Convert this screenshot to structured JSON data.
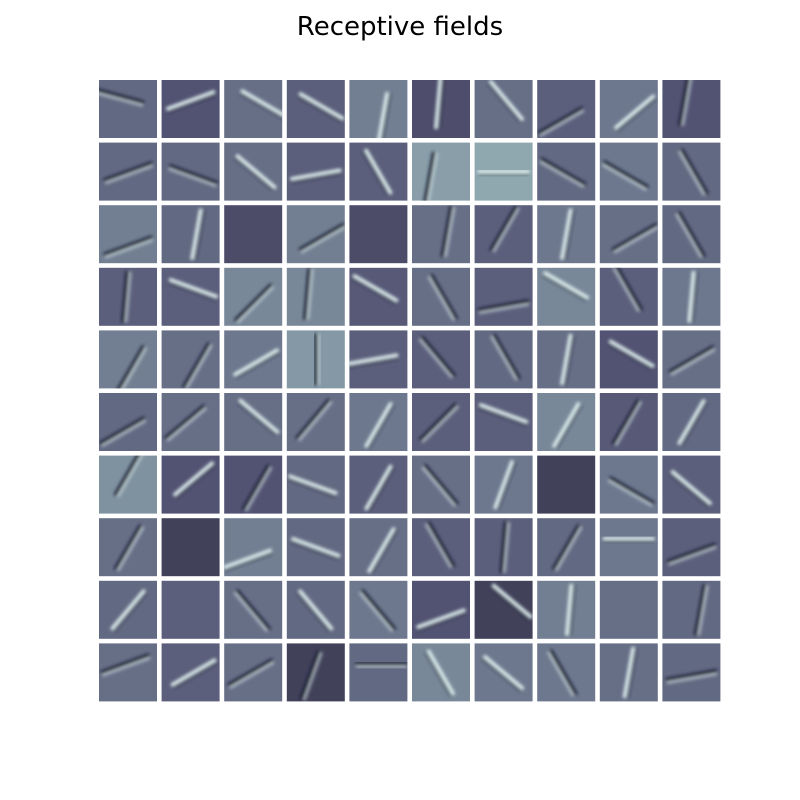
{
  "chart_data": {
    "type": "heatmap",
    "title": "Receptive fields",
    "layout": {
      "rows": 10,
      "cols": 10
    },
    "colormap": "bone",
    "axes_visible": false,
    "tiles": [
      {
        "tone": 0.45,
        "stroke": {
          "angle": -15,
          "dx": -0.3,
          "dy": -0.45,
          "polarity": "dark"
        }
      },
      {
        "tone": 0.38,
        "stroke": {
          "angle": 20,
          "dx": 0.0,
          "dy": -0.3,
          "polarity": "light"
        }
      },
      {
        "tone": 0.47,
        "stroke": {
          "angle": -30,
          "dx": 0.35,
          "dy": -0.2,
          "polarity": "light"
        }
      },
      {
        "tone": 0.42,
        "stroke": {
          "angle": -30,
          "dx": 0.2,
          "dy": -0.1,
          "polarity": "light"
        }
      },
      {
        "tone": 0.52,
        "stroke": {
          "angle": 80,
          "dx": 0.15,
          "dy": 0.3,
          "polarity": "light"
        }
      },
      {
        "tone": 0.36,
        "stroke": {
          "angle": 85,
          "dx": -0.1,
          "dy": -0.2,
          "polarity": "light"
        }
      },
      {
        "tone": 0.47,
        "stroke": {
          "angle": -50,
          "dx": 0.1,
          "dy": -0.3,
          "polarity": "light"
        }
      },
      {
        "tone": 0.42,
        "stroke": {
          "angle": 30,
          "dx": -0.2,
          "dy": 0.4,
          "polarity": "dark"
        }
      },
      {
        "tone": 0.5,
        "stroke": {
          "angle": 40,
          "dx": 0.2,
          "dy": 0.1,
          "polarity": "light"
        }
      },
      {
        "tone": 0.38,
        "stroke": {
          "angle": 80,
          "dx": -0.25,
          "dy": -0.3,
          "polarity": "dark"
        }
      },
      {
        "tone": 0.45,
        "stroke": {
          "angle": 20,
          "dx": 0.0,
          "dy": 0.0,
          "polarity": "dark"
        }
      },
      {
        "tone": 0.45,
        "stroke": {
          "angle": -20,
          "dx": 0.1,
          "dy": 0.1,
          "polarity": "dark"
        }
      },
      {
        "tone": 0.47,
        "stroke": {
          "angle": -40,
          "dx": 0.1,
          "dy": 0.0,
          "polarity": "light"
        }
      },
      {
        "tone": 0.42,
        "stroke": {
          "angle": 10,
          "dx": 0.0,
          "dy": 0.1,
          "polarity": "light"
        }
      },
      {
        "tone": 0.42,
        "stroke": {
          "angle": -60,
          "dx": 0.0,
          "dy": 0.0,
          "polarity": "light"
        }
      },
      {
        "tone": 0.62,
        "stroke": {
          "angle": 80,
          "dx": -0.4,
          "dy": 0.2,
          "polarity": "dark"
        }
      },
      {
        "tone": 0.65,
        "stroke": {
          "angle": 0,
          "dx": 0.0,
          "dy": 0.0,
          "polarity": "light"
        }
      },
      {
        "tone": 0.45,
        "stroke": {
          "angle": -30,
          "dx": -0.1,
          "dy": 0.0,
          "polarity": "dark"
        }
      },
      {
        "tone": 0.5,
        "stroke": {
          "angle": -30,
          "dx": -0.1,
          "dy": 0.1,
          "polarity": "dark"
        }
      },
      {
        "tone": 0.45,
        "stroke": {
          "angle": -60,
          "dx": 0.1,
          "dy": 0.0,
          "polarity": "dark"
        }
      },
      {
        "tone": 0.52,
        "stroke": {
          "angle": 20,
          "dx": 0.0,
          "dy": 0.4,
          "polarity": "dark"
        }
      },
      {
        "tone": 0.45,
        "stroke": {
          "angle": 80,
          "dx": 0.2,
          "dy": 0.0,
          "polarity": "light"
        }
      },
      {
        "tone": 0.35,
        "stroke": {
          "angle": 0,
          "dx": 0.0,
          "dy": 0.0,
          "polarity": "none"
        }
      },
      {
        "tone": 0.52,
        "stroke": {
          "angle": 30,
          "dx": 0.2,
          "dy": 0.1,
          "polarity": "dark"
        }
      },
      {
        "tone": 0.35,
        "stroke": {
          "angle": 0,
          "dx": 0.0,
          "dy": 0.0,
          "polarity": "none"
        }
      },
      {
        "tone": 0.47,
        "stroke": {
          "angle": 80,
          "dx": 0.2,
          "dy": -0.1,
          "polarity": "dark"
        }
      },
      {
        "tone": 0.42,
        "stroke": {
          "angle": 60,
          "dx": 0.0,
          "dy": -0.2,
          "polarity": "dark"
        }
      },
      {
        "tone": 0.5,
        "stroke": {
          "angle": 80,
          "dx": 0.0,
          "dy": 0.0,
          "polarity": "light"
        }
      },
      {
        "tone": 0.47,
        "stroke": {
          "angle": 30,
          "dx": 0.2,
          "dy": 0.1,
          "polarity": "dark"
        }
      },
      {
        "tone": 0.45,
        "stroke": {
          "angle": -60,
          "dx": 0.0,
          "dy": 0.0,
          "polarity": "dark"
        }
      },
      {
        "tone": 0.42,
        "stroke": {
          "angle": 85,
          "dx": -0.1,
          "dy": 0.0,
          "polarity": "dark"
        }
      },
      {
        "tone": 0.42,
        "stroke": {
          "angle": -20,
          "dx": 0.1,
          "dy": -0.3,
          "polarity": "light"
        }
      },
      {
        "tone": 0.55,
        "stroke": {
          "angle": 45,
          "dx": 0.0,
          "dy": 0.2,
          "polarity": "dark"
        }
      },
      {
        "tone": 0.55,
        "stroke": {
          "angle": 85,
          "dx": -0.3,
          "dy": -0.1,
          "polarity": "dark"
        }
      },
      {
        "tone": 0.4,
        "stroke": {
          "angle": -30,
          "dx": -0.1,
          "dy": -0.3,
          "polarity": "light"
        }
      },
      {
        "tone": 0.47,
        "stroke": {
          "angle": -60,
          "dx": 0.1,
          "dy": 0.0,
          "polarity": "dark"
        }
      },
      {
        "tone": 0.42,
        "stroke": {
          "angle": 10,
          "dx": 0.0,
          "dy": 0.3,
          "polarity": "dark"
        }
      },
      {
        "tone": 0.55,
        "stroke": {
          "angle": -30,
          "dx": 0.0,
          "dy": -0.4,
          "polarity": "light"
        }
      },
      {
        "tone": 0.42,
        "stroke": {
          "angle": -60,
          "dx": 0.0,
          "dy": -0.3,
          "polarity": "dark"
        }
      },
      {
        "tone": 0.5,
        "stroke": {
          "angle": 85,
          "dx": 0.0,
          "dy": 0.0,
          "polarity": "light"
        }
      },
      {
        "tone": 0.52,
        "stroke": {
          "angle": 60,
          "dx": 0.1,
          "dy": 0.3,
          "polarity": "dark"
        }
      },
      {
        "tone": 0.47,
        "stroke": {
          "angle": 60,
          "dx": 0.2,
          "dy": 0.2,
          "polarity": "dark"
        }
      },
      {
        "tone": 0.5,
        "stroke": {
          "angle": 30,
          "dx": 0.1,
          "dy": 0.1,
          "polarity": "light"
        }
      },
      {
        "tone": 0.6,
        "stroke": {
          "angle": 90,
          "dx": 0.0,
          "dy": 0.0,
          "polarity": "dark"
        }
      },
      {
        "tone": 0.42,
        "stroke": {
          "angle": 10,
          "dx": -0.2,
          "dy": 0.0,
          "polarity": "light"
        }
      },
      {
        "tone": 0.42,
        "stroke": {
          "angle": -50,
          "dx": -0.1,
          "dy": -0.1,
          "polarity": "dark"
        }
      },
      {
        "tone": 0.45,
        "stroke": {
          "angle": -60,
          "dx": 0.1,
          "dy": -0.1,
          "polarity": "dark"
        }
      },
      {
        "tone": 0.47,
        "stroke": {
          "angle": 80,
          "dx": 0.0,
          "dy": 0.0,
          "polarity": "light"
        }
      },
      {
        "tone": 0.38,
        "stroke": {
          "angle": -30,
          "dx": 0.1,
          "dy": -0.2,
          "polarity": "light"
        }
      },
      {
        "tone": 0.47,
        "stroke": {
          "angle": 30,
          "dx": 0.0,
          "dy": 0.0,
          "polarity": "dark"
        }
      },
      {
        "tone": 0.45,
        "stroke": {
          "angle": 30,
          "dx": -0.2,
          "dy": 0.3,
          "polarity": "dark"
        }
      },
      {
        "tone": 0.47,
        "stroke": {
          "angle": 40,
          "dx": -0.2,
          "dy": 0.0,
          "polarity": "dark"
        }
      },
      {
        "tone": 0.47,
        "stroke": {
          "angle": -40,
          "dx": 0.2,
          "dy": -0.2,
          "polarity": "light"
        }
      },
      {
        "tone": 0.47,
        "stroke": {
          "angle": 50,
          "dx": -0.1,
          "dy": -0.1,
          "polarity": "dark"
        }
      },
      {
        "tone": 0.5,
        "stroke": {
          "angle": 60,
          "dx": 0.0,
          "dy": 0.1,
          "polarity": "light"
        }
      },
      {
        "tone": 0.42,
        "stroke": {
          "angle": 45,
          "dx": -0.1,
          "dy": 0.0,
          "polarity": "dark"
        }
      },
      {
        "tone": 0.42,
        "stroke": {
          "angle": -20,
          "dx": 0.0,
          "dy": -0.3,
          "polarity": "light"
        }
      },
      {
        "tone": 0.55,
        "stroke": {
          "angle": 60,
          "dx": 0.0,
          "dy": 0.1,
          "polarity": "light"
        }
      },
      {
        "tone": 0.4,
        "stroke": {
          "angle": 60,
          "dx": -0.1,
          "dy": 0.0,
          "polarity": "dark"
        }
      },
      {
        "tone": 0.45,
        "stroke": {
          "angle": 60,
          "dx": 0.0,
          "dy": 0.0,
          "polarity": "light"
        }
      },
      {
        "tone": 0.58,
        "stroke": {
          "angle": 60,
          "dx": 0.0,
          "dy": -0.4,
          "polarity": "dark"
        }
      },
      {
        "tone": 0.38,
        "stroke": {
          "angle": 40,
          "dx": 0.1,
          "dy": -0.2,
          "polarity": "light"
        }
      },
      {
        "tone": 0.38,
        "stroke": {
          "angle": 60,
          "dx": 0.1,
          "dy": 0.1,
          "polarity": "dark"
        }
      },
      {
        "tone": 0.45,
        "stroke": {
          "angle": -20,
          "dx": -0.1,
          "dy": 0.0,
          "polarity": "light"
        }
      },
      {
        "tone": 0.42,
        "stroke": {
          "angle": 60,
          "dx": 0.0,
          "dy": 0.1,
          "polarity": "light"
        }
      },
      {
        "tone": 0.47,
        "stroke": {
          "angle": -50,
          "dx": 0.0,
          "dy": 0.0,
          "polarity": "dark"
        }
      },
      {
        "tone": 0.5,
        "stroke": {
          "angle": 70,
          "dx": 0.0,
          "dy": 0.0,
          "polarity": "light"
        }
      },
      {
        "tone": 0.3,
        "stroke": {
          "angle": 0,
          "dx": 0.0,
          "dy": 0.0,
          "polarity": "none"
        }
      },
      {
        "tone": 0.5,
        "stroke": {
          "angle": -30,
          "dx": 0.1,
          "dy": 0.2,
          "polarity": "dark"
        }
      },
      {
        "tone": 0.42,
        "stroke": {
          "angle": -40,
          "dx": 0.0,
          "dy": 0.1,
          "polarity": "light"
        }
      },
      {
        "tone": 0.47,
        "stroke": {
          "angle": 60,
          "dx": 0.0,
          "dy": 0.0,
          "polarity": "dark"
        }
      },
      {
        "tone": 0.3,
        "stroke": {
          "angle": 0,
          "dx": 0.0,
          "dy": 0.0,
          "polarity": "none"
        }
      },
      {
        "tone": 0.52,
        "stroke": {
          "angle": 20,
          "dx": -0.2,
          "dy": 0.4,
          "polarity": "light"
        }
      },
      {
        "tone": 0.45,
        "stroke": {
          "angle": -20,
          "dx": 0.0,
          "dy": 0.0,
          "polarity": "light"
        }
      },
      {
        "tone": 0.47,
        "stroke": {
          "angle": 60,
          "dx": 0.1,
          "dy": 0.1,
          "polarity": "light"
        }
      },
      {
        "tone": 0.42,
        "stroke": {
          "angle": -60,
          "dx": 0.0,
          "dy": -0.1,
          "polarity": "dark"
        }
      },
      {
        "tone": 0.42,
        "stroke": {
          "angle": 85,
          "dx": 0.0,
          "dy": 0.0,
          "polarity": "dark"
        }
      },
      {
        "tone": 0.45,
        "stroke": {
          "angle": 60,
          "dx": 0.0,
          "dy": 0.0,
          "polarity": "dark"
        }
      },
      {
        "tone": 0.5,
        "stroke": {
          "angle": 0,
          "dx": 0.0,
          "dy": -0.3,
          "polarity": "light"
        }
      },
      {
        "tone": 0.42,
        "stroke": {
          "angle": 20,
          "dx": 0.0,
          "dy": 0.2,
          "polarity": "dark"
        }
      },
      {
        "tone": 0.45,
        "stroke": {
          "angle": 50,
          "dx": 0.0,
          "dy": 0.0,
          "polarity": "light"
        }
      },
      {
        "tone": 0.42,
        "stroke": {
          "angle": 0,
          "dx": 0.0,
          "dy": 0.0,
          "polarity": "none"
        }
      },
      {
        "tone": 0.47,
        "stroke": {
          "angle": -50,
          "dx": 0.0,
          "dy": 0.0,
          "polarity": "dark"
        }
      },
      {
        "tone": 0.45,
        "stroke": {
          "angle": -50,
          "dx": 0.0,
          "dy": 0.0,
          "polarity": "light"
        }
      },
      {
        "tone": 0.5,
        "stroke": {
          "angle": -50,
          "dx": 0.0,
          "dy": 0.0,
          "polarity": "dark"
        }
      },
      {
        "tone": 0.38,
        "stroke": {
          "angle": 20,
          "dx": 0.0,
          "dy": 0.3,
          "polarity": "light"
        }
      },
      {
        "tone": 0.3,
        "stroke": {
          "angle": -40,
          "dx": 0.3,
          "dy": -0.3,
          "polarity": "light"
        }
      },
      {
        "tone": 0.52,
        "stroke": {
          "angle": 85,
          "dx": 0.1,
          "dy": 0.0,
          "polarity": "light"
        }
      },
      {
        "tone": 0.47,
        "stroke": {
          "angle": 0,
          "dx": 0.0,
          "dy": 0.0,
          "polarity": "none"
        }
      },
      {
        "tone": 0.45,
        "stroke": {
          "angle": 80,
          "dx": 0.3,
          "dy": 0.0,
          "polarity": "dark"
        }
      },
      {
        "tone": 0.47,
        "stroke": {
          "angle": 20,
          "dx": -0.1,
          "dy": -0.3,
          "polarity": "dark"
        }
      },
      {
        "tone": 0.42,
        "stroke": {
          "angle": 30,
          "dx": 0.1,
          "dy": 0.0,
          "polarity": "light"
        }
      },
      {
        "tone": 0.47,
        "stroke": {
          "angle": 30,
          "dx": -0.1,
          "dy": 0.0,
          "polarity": "dark"
        }
      },
      {
        "tone": 0.3,
        "stroke": {
          "angle": 70,
          "dx": -0.2,
          "dy": 0.1,
          "polarity": "dark"
        }
      },
      {
        "tone": 0.45,
        "stroke": {
          "angle": 0,
          "dx": 0.1,
          "dy": -0.3,
          "polarity": "dark"
        }
      },
      {
        "tone": 0.55,
        "stroke": {
          "angle": -60,
          "dx": 0.0,
          "dy": 0.0,
          "polarity": "light"
        }
      },
      {
        "tone": 0.5,
        "stroke": {
          "angle": -40,
          "dx": 0.0,
          "dy": 0.0,
          "polarity": "light"
        }
      },
      {
        "tone": 0.5,
        "stroke": {
          "angle": -60,
          "dx": -0.1,
          "dy": 0.0,
          "polarity": "dark"
        }
      },
      {
        "tone": 0.47,
        "stroke": {
          "angle": 80,
          "dx": 0.0,
          "dy": 0.0,
          "polarity": "light"
        }
      },
      {
        "tone": 0.45,
        "stroke": {
          "angle": 10,
          "dx": 0.0,
          "dy": 0.1,
          "polarity": "dark"
        }
      }
    ]
  },
  "colors": {
    "background": "#ffffff",
    "stroke_dark": "#1a1d33",
    "stroke_light": "#e2f3f2"
  }
}
